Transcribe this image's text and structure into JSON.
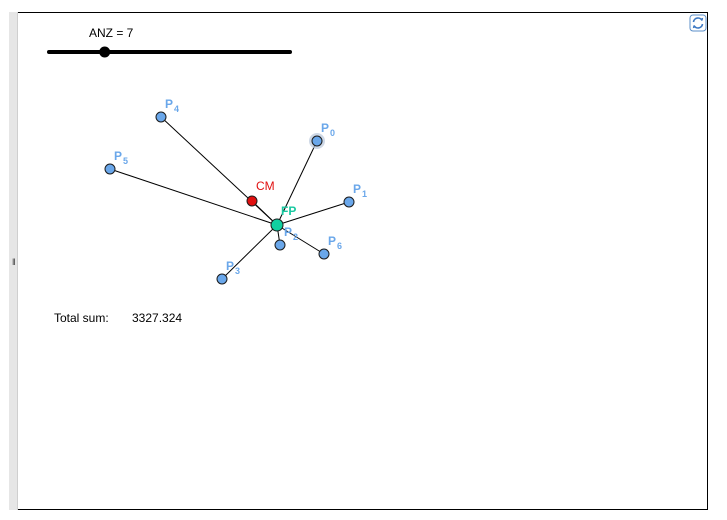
{
  "top_fragment": "",
  "slider": {
    "label": "ANZ = 7",
    "min": 1,
    "max": 20,
    "value": 7
  },
  "points": [
    {
      "name": "P",
      "sub": "0"
    },
    {
      "name": "P",
      "sub": "1"
    },
    {
      "name": "P",
      "sub": "2"
    },
    {
      "name": "P",
      "sub": "3"
    },
    {
      "name": "P",
      "sub": "4"
    },
    {
      "name": "P",
      "sub": "5"
    },
    {
      "name": "P",
      "sub": "6"
    }
  ],
  "center_mass": {
    "label": "CM"
  },
  "fermat_point": {
    "label": "FP"
  },
  "total": {
    "label": "Total sum:",
    "value": "3327.324"
  },
  "colors": {
    "point": "#6aa7ea",
    "point_label": "#6aa7ea",
    "cm": "#e01010",
    "fp": "#10d0a0",
    "fp_label": "#18c8a0"
  },
  "icons": {
    "reset": "refresh-icon"
  }
}
